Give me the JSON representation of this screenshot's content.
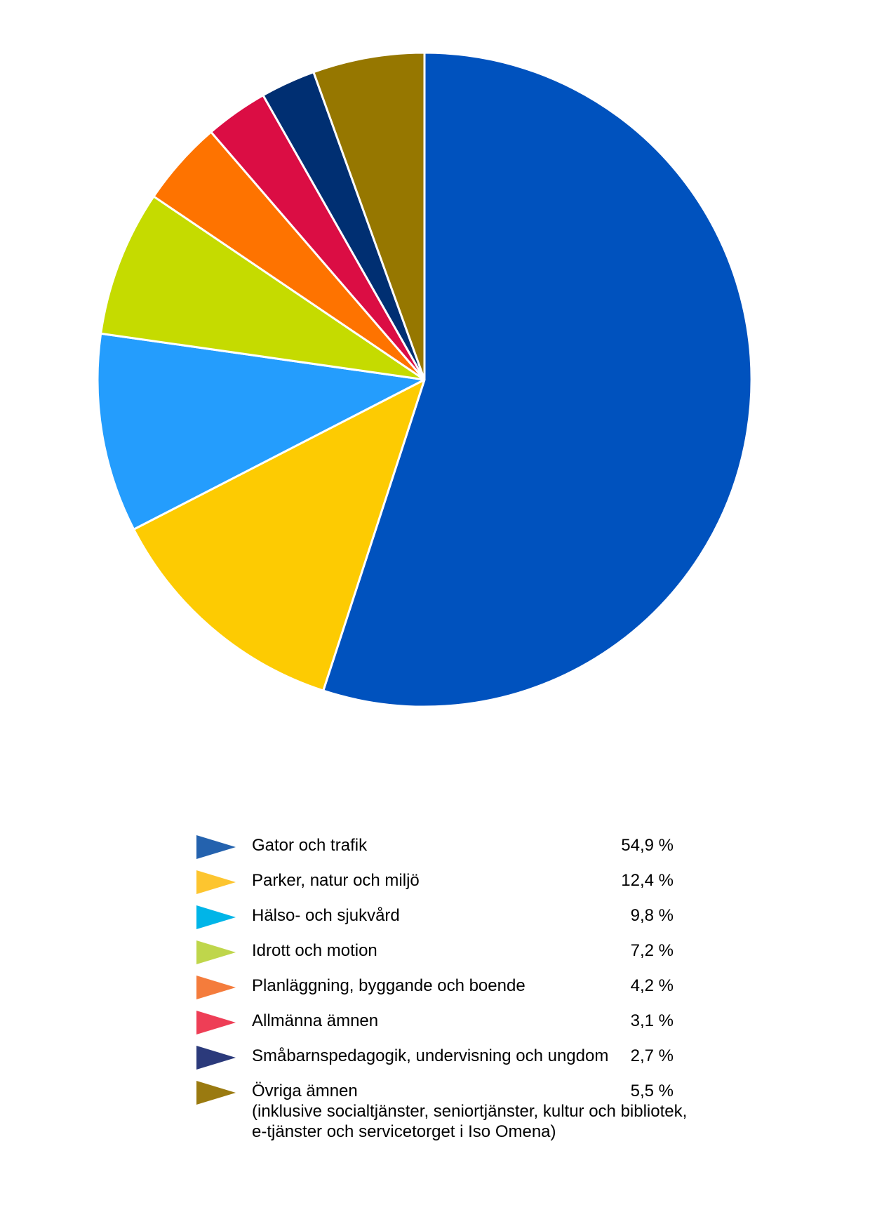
{
  "chart_data": {
    "type": "pie",
    "title": "",
    "start": "top, clockwise",
    "slices": [
      {
        "label": "Gator och trafik",
        "value": 54.9,
        "value_label": "54,9 %",
        "color": "#0052BE",
        "legend_color": "#2462AE"
      },
      {
        "label": "Parker, natur och miljö",
        "value": 12.4,
        "value_label": "12,4 %",
        "color": "#FDCB02",
        "legend_color": "#FDC52F"
      },
      {
        "label": "Hälso- och sjukvård",
        "value": 9.8,
        "value_label": "9,8 %",
        "color": "#249DFD",
        "legend_color": "#00B5E8"
      },
      {
        "label": "Idrott och motion",
        "value": 7.2,
        "value_label": "7,2 %",
        "color": "#C5DB00",
        "legend_color": "#BFD64B"
      },
      {
        "label": "Planläggning, byggande och boende",
        "value": 4.2,
        "value_label": "4,2 %",
        "color": "#FE7300",
        "legend_color": "#F47C3C"
      },
      {
        "label": "Allmänna ämnen",
        "value": 3.1,
        "value_label": "3,1 %",
        "color": "#DB0D44",
        "legend_color": "#EE3E56"
      },
      {
        "label": "Småbarnspedagogik, undervisning och ungdom",
        "value": 2.7,
        "value_label": "2,7 %",
        "color": "#002F72",
        "legend_color": "#2B3A7B"
      },
      {
        "label": "Övriga ämnen",
        "value": 5.5,
        "value_label": "5,5 %",
        "color": "#967700",
        "legend_color": "#9A7A10",
        "note_lines": [
          "(inklusive socialtjänster, seniortjänster, kultur och bibliotek,",
          "e-tjänster och servicetorget i Iso Omena)"
        ]
      }
    ]
  }
}
